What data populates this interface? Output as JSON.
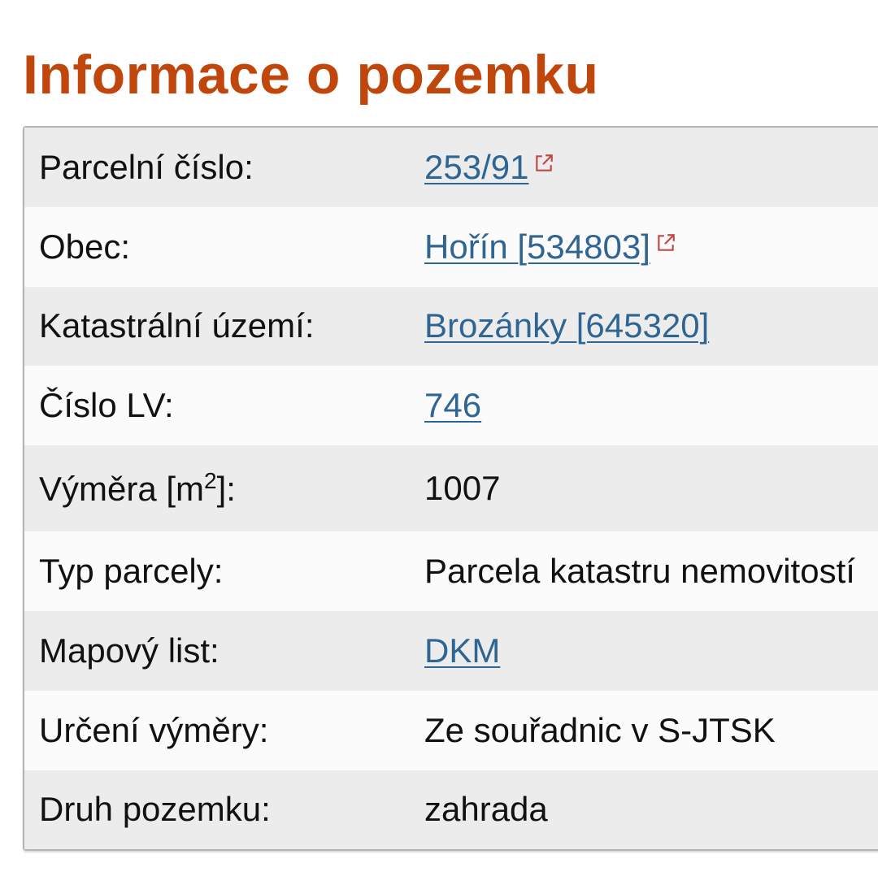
{
  "title": "Informace o pozemku",
  "colors": {
    "title": "#c0460c",
    "link": "#2e6592",
    "external_icon": "#c04848"
  },
  "rows": [
    {
      "label": "Parcelní číslo:",
      "value": "253/91",
      "link": true,
      "external": true
    },
    {
      "label": "Obec:",
      "value": "Hořín [534803]",
      "link": true,
      "external": true
    },
    {
      "label": "Katastrální území:",
      "value": "Brozánky [645320]",
      "link": true
    },
    {
      "label": "Číslo LV:",
      "value": "746",
      "link": true
    },
    {
      "label_main": "Výměra [m",
      "label_sup": "2",
      "label_end": "]:",
      "value": "1007"
    },
    {
      "label": "Typ parcely:",
      "value": "Parcela katastru nemovitostí"
    },
    {
      "label": "Mapový list:",
      "value": "DKM",
      "link": true
    },
    {
      "label": "Určení výměry:",
      "value": "Ze souřadnic v S-JTSK"
    },
    {
      "label": "Druh pozemku:",
      "value": "zahrada"
    }
  ]
}
